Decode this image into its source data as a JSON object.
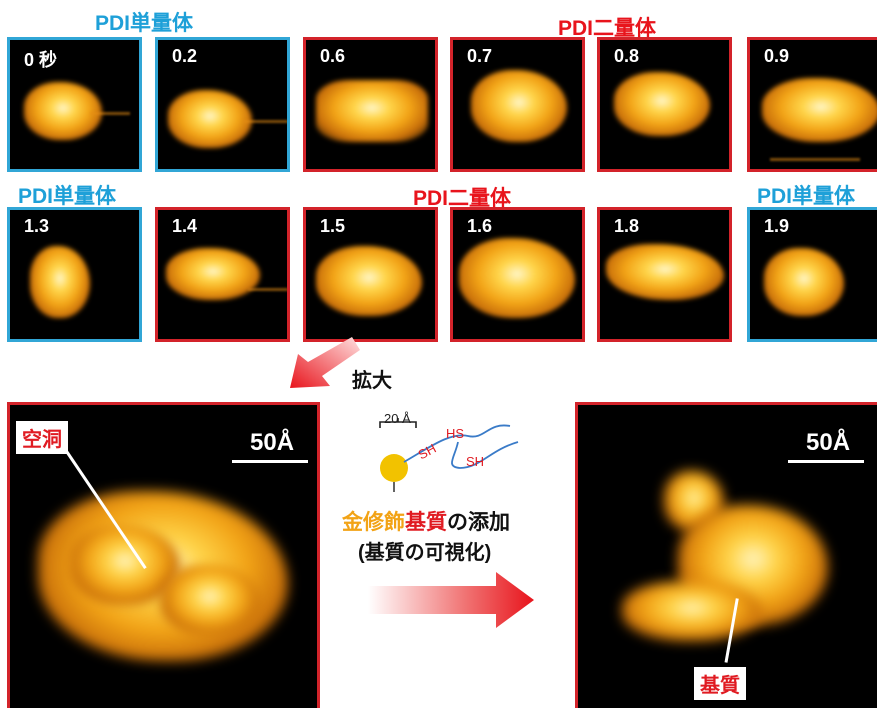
{
  "headers": {
    "row1_left": "PDI単量体",
    "row1_right": "PDI二量体",
    "row2_left": "PDI単量体",
    "row2_mid": "PDI二量体",
    "row2_right": "PDI単量体"
  },
  "row1_times": [
    "0 秒",
    "0.2",
    "0.6",
    "0.7",
    "0.8",
    "0.9"
  ],
  "row2_times": [
    "1.3",
    "1.4",
    "1.5",
    "1.6",
    "1.8",
    "1.9"
  ],
  "zoom_label": "拡大",
  "left_panel": {
    "callout": "空洞",
    "scale": "50Å"
  },
  "right_panel": {
    "callout": "基質",
    "scale": "50Å"
  },
  "schematic": {
    "length_label": "20 Å",
    "sh1": "SH",
    "sh2": "HS",
    "sh3": "SH"
  },
  "caption": {
    "part1": "金修飾",
    "part2": "基質",
    "part3": "の添加",
    "line2": "(基質の可視化)"
  },
  "colors": {
    "monomer_blue": "#31a6d6",
    "dimer_red": "#d3232a",
    "gold": "#f2a316"
  }
}
